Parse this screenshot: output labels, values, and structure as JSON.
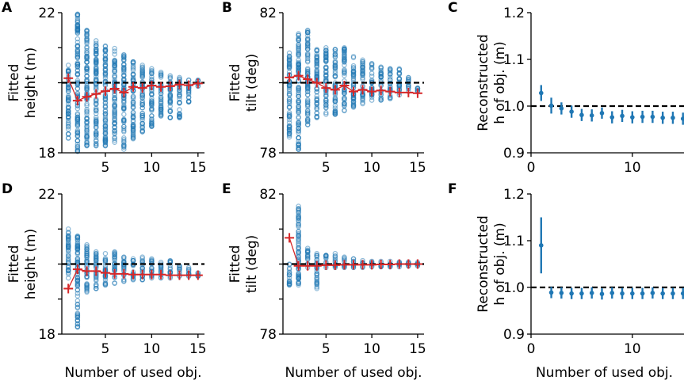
{
  "colors": {
    "scatter": "#1f77b4",
    "mean": "#d62728",
    "reference": "#000000",
    "errorbar": "#1f77b4"
  },
  "chart_data": [
    {
      "letter": "A",
      "type": "scatter",
      "ylabel": [
        "Fitted",
        "height (m)"
      ],
      "xlabel": "",
      "ylim": [
        18,
        22
      ],
      "yticks": [
        18,
        22
      ],
      "yminor": [
        19,
        20,
        21
      ],
      "xlim": [
        0.3,
        15.7
      ],
      "xticks": [
        5,
        10,
        15
      ],
      "reference": 20,
      "x": [
        1,
        2,
        3,
        4,
        5,
        6,
        7,
        8,
        9,
        10,
        11,
        12,
        13,
        14,
        15
      ],
      "scatter_range": [
        [
          18.42,
          20.5
        ],
        [
          18.04,
          21.96
        ],
        [
          18.2,
          21.5
        ],
        [
          18.2,
          21.2
        ],
        [
          18.2,
          21.05
        ],
        [
          18.3,
          20.98
        ],
        [
          18.1,
          20.8
        ],
        [
          18.4,
          20.6
        ],
        [
          18.6,
          20.5
        ],
        [
          18.75,
          20.4
        ],
        [
          19.05,
          20.3
        ],
        [
          19.0,
          20.2
        ],
        [
          19.0,
          20.15
        ],
        [
          19.45,
          20.08
        ],
        [
          19.9,
          20.08
        ]
      ],
      "mean": [
        20.13,
        19.49,
        19.6,
        19.68,
        19.76,
        19.83,
        19.72,
        19.88,
        19.85,
        19.92,
        19.88,
        19.9,
        19.95,
        19.93,
        19.98
      ]
    },
    {
      "letter": "B",
      "type": "scatter",
      "ylabel": [
        "Fitted",
        "tilt (deg)"
      ],
      "xlabel": "",
      "ylim": [
        78,
        82
      ],
      "yticks": [
        78,
        82
      ],
      "yminor": [
        79,
        80,
        81
      ],
      "xlim": [
        0.3,
        15.7
      ],
      "xticks": [
        5,
        10,
        15
      ],
      "reference": 80,
      "x": [
        1,
        2,
        3,
        4,
        5,
        6,
        7,
        8,
        9,
        10,
        11,
        12,
        13,
        14,
        15
      ],
      "scatter_range": [
        [
          78.45,
          80.85
        ],
        [
          78.1,
          81.4
        ],
        [
          78.8,
          81.5
        ],
        [
          79.0,
          80.95
        ],
        [
          79.1,
          81.0
        ],
        [
          79.1,
          80.95
        ],
        [
          79.2,
          81.0
        ],
        [
          79.3,
          80.75
        ],
        [
          79.4,
          80.65
        ],
        [
          79.5,
          80.55
        ],
        [
          79.5,
          80.45
        ],
        [
          79.55,
          80.4
        ],
        [
          79.65,
          80.4
        ],
        [
          79.75,
          80.15
        ],
        [
          79.75,
          79.85
        ]
      ],
      "mean": [
        80.15,
        80.2,
        80.1,
        80.0,
        79.85,
        79.8,
        79.92,
        79.75,
        79.8,
        79.75,
        79.78,
        79.75,
        79.72,
        79.72,
        79.7
      ]
    },
    {
      "letter": "C",
      "type": "errorbar",
      "ylabel": [
        "Reconstructed",
        "h of obj. (m)"
      ],
      "xlabel": "",
      "ylim": [
        0.9,
        1.2
      ],
      "yticks": [
        "0.9",
        "1.0",
        "1.1",
        "1.2"
      ],
      "xlim": [
        0,
        15.1
      ],
      "xticks": [
        0,
        10
      ],
      "reference": 1.0,
      "x": [
        1,
        2,
        3,
        4,
        5,
        6,
        7,
        8,
        9,
        10,
        11,
        12,
        13,
        14,
        15
      ],
      "y": [
        1.028,
        1.001,
        0.995,
        0.988,
        0.981,
        0.98,
        0.985,
        0.976,
        0.979,
        0.976,
        0.977,
        0.977,
        0.975,
        0.975,
        0.973
      ],
      "yerr": [
        0.017,
        0.017,
        0.013,
        0.013,
        0.013,
        0.013,
        0.012,
        0.013,
        0.013,
        0.013,
        0.013,
        0.013,
        0.013,
        0.013,
        0.013
      ]
    },
    {
      "letter": "D",
      "type": "scatter",
      "ylabel": [
        "Fitted",
        "height (m)"
      ],
      "xlabel": "Number of used obj.",
      "ylim": [
        18,
        22
      ],
      "yticks": [
        18,
        22
      ],
      "yminor": [
        19,
        20,
        21
      ],
      "xlim": [
        0.3,
        15.7
      ],
      "xticks": [
        5,
        10,
        15
      ],
      "reference": 20,
      "x": [
        1,
        2,
        3,
        4,
        5,
        6,
        7,
        8,
        9,
        10,
        11,
        12,
        13,
        14,
        15
      ],
      "scatter_range": [
        [
          19.6,
          21.0
        ],
        [
          18.2,
          20.8
        ],
        [
          19.2,
          20.55
        ],
        [
          19.3,
          20.35
        ],
        [
          19.4,
          20.3
        ],
        [
          19.45,
          20.35
        ],
        [
          19.5,
          20.2
        ],
        [
          19.55,
          20.15
        ],
        [
          19.55,
          20.2
        ],
        [
          19.6,
          20.15
        ],
        [
          19.6,
          20.05
        ],
        [
          19.6,
          20.1
        ],
        [
          19.65,
          19.95
        ],
        [
          19.65,
          19.9
        ],
        [
          19.65,
          19.75
        ]
      ],
      "mean": [
        19.3,
        19.85,
        19.8,
        19.8,
        19.75,
        19.72,
        19.72,
        19.7,
        19.7,
        19.7,
        19.7,
        19.68,
        19.68,
        19.68,
        19.68
      ]
    },
    {
      "letter": "E",
      "type": "scatter",
      "ylabel": [
        "Fitted",
        "tilt (deg)"
      ],
      "xlabel": "Number of used obj.",
      "ylim": [
        78,
        82
      ],
      "yticks": [
        78,
        82
      ],
      "yminor": [
        79,
        80,
        81
      ],
      "xlim": [
        0.3,
        15.7
      ],
      "xticks": [
        5,
        10,
        15
      ],
      "reference": 80,
      "x": [
        1,
        2,
        3,
        4,
        5,
        6,
        7,
        8,
        9,
        10,
        11,
        12,
        13,
        14,
        15
      ],
      "scatter_range": [
        [
          79.4,
          80.0
        ],
        [
          79.4,
          81.65
        ],
        [
          79.9,
          80.45
        ],
        [
          79.3,
          80.3
        ],
        [
          79.9,
          80.25
        ],
        [
          79.9,
          80.3
        ],
        [
          79.9,
          80.2
        ],
        [
          79.9,
          80.15
        ],
        [
          79.9,
          80.1
        ],
        [
          79.92,
          80.08
        ],
        [
          79.92,
          80.08
        ],
        [
          79.92,
          80.08
        ],
        [
          79.92,
          80.06
        ],
        [
          79.94,
          80.06
        ],
        [
          79.95,
          80.05
        ]
      ],
      "mean": [
        80.75,
        79.95,
        79.95,
        79.95,
        79.97,
        79.97,
        79.98,
        79.98,
        79.98,
        79.98,
        79.99,
        79.99,
        80.0,
        80.0,
        80.0
      ]
    },
    {
      "letter": "F",
      "type": "errorbar",
      "ylabel": [
        "Reconstructed",
        "h of obj. (m)"
      ],
      "xlabel": "Number of used obj.",
      "ylim": [
        0.9,
        1.2
      ],
      "yticks": [
        "0.9",
        "1.0",
        "1.1",
        "1.2"
      ],
      "xlim": [
        0,
        15.1
      ],
      "xticks": [
        0,
        10
      ],
      "reference": 1.0,
      "x": [
        1,
        2,
        3,
        4,
        5,
        6,
        7,
        8,
        9,
        10,
        11,
        12,
        13,
        14,
        15
      ],
      "y": [
        1.09,
        0.989,
        0.988,
        0.987,
        0.987,
        0.988,
        0.986,
        0.988,
        0.987,
        0.987,
        0.987,
        0.988,
        0.987,
        0.987,
        0.987
      ],
      "yerr": [
        0.06,
        0.012,
        0.012,
        0.012,
        0.012,
        0.012,
        0.012,
        0.012,
        0.012,
        0.012,
        0.012,
        0.012,
        0.012,
        0.012,
        0.012
      ]
    }
  ]
}
